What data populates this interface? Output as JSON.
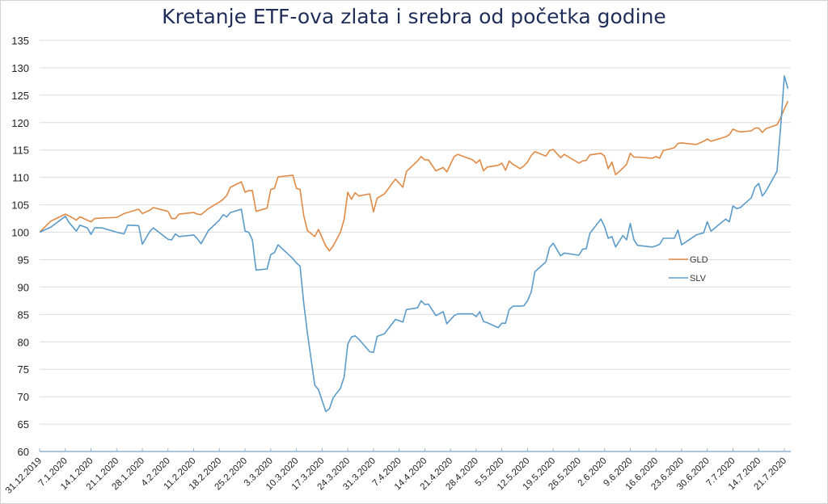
{
  "chart_data": {
    "type": "line",
    "title": "Kretanje ETF-ova zlata i srebra od početka godine",
    "xlabel": "",
    "ylabel": "",
    "ylim": [
      60,
      135
    ],
    "yticks": [
      60,
      65,
      70,
      75,
      80,
      85,
      90,
      95,
      100,
      105,
      110,
      115,
      120,
      125,
      130,
      135
    ],
    "xlim": [
      "2019-12-31",
      "2020-07-23"
    ],
    "xtick_labels": [
      "31.12.2019",
      "7.1.2020",
      "14.1.2020",
      "21.1.2020",
      "28.1.2020",
      "4.2.2020",
      "11.2.2020",
      "18.2.2020",
      "25.2.2020",
      "3.3.2020",
      "10.3.2020",
      "17.3.2020",
      "24.3.2020",
      "31.3.2020",
      "7.4.2020",
      "14.4.2020",
      "21.4.2020",
      "28.4.2020",
      "5.5.2020",
      "12.5.2020",
      "19.5.2020",
      "26.5.2020",
      "2.6.2020",
      "9.6.2020",
      "16.6.2020",
      "23.6.2020",
      "30.6.2020",
      "7.7.2020",
      "14.7.2020",
      "21.7.2020"
    ],
    "grid": true,
    "legend_position": "right",
    "x": [
      "2019-12-31",
      "2020-01-03",
      "2020-01-07",
      "2020-01-08",
      "2020-01-10",
      "2020-01-11",
      "2020-01-13",
      "2020-01-14",
      "2020-01-15",
      "2020-01-17",
      "2020-01-21",
      "2020-01-23",
      "2020-01-24",
      "2020-01-27",
      "2020-01-28",
      "2020-01-30",
      "2020-01-31",
      "2020-02-04",
      "2020-02-05",
      "2020-02-06",
      "2020-02-07",
      "2020-02-11",
      "2020-02-12",
      "2020-02-13",
      "2020-02-15",
      "2020-02-18",
      "2020-02-19",
      "2020-02-20",
      "2020-02-21",
      "2020-02-24",
      "2020-02-25",
      "2020-02-26",
      "2020-02-27",
      "2020-02-28",
      "2020-03-02",
      "2020-03-03",
      "2020-03-04",
      "2020-03-05",
      "2020-03-09",
      "2020-03-10",
      "2020-03-11",
      "2020-03-12",
      "2020-03-13",
      "2020-03-15",
      "2020-03-16",
      "2020-03-18",
      "2020-03-19",
      "2020-03-20",
      "2020-03-22",
      "2020-03-23",
      "2020-03-24",
      "2020-03-25",
      "2020-03-26",
      "2020-03-27",
      "2020-03-30",
      "2020-03-31",
      "2020-04-01",
      "2020-04-03",
      "2020-04-06",
      "2020-04-08",
      "2020-04-09",
      "2020-04-12",
      "2020-04-13",
      "2020-04-14",
      "2020-04-15",
      "2020-04-17",
      "2020-04-19",
      "2020-04-20",
      "2020-04-22",
      "2020-04-23",
      "2020-04-27",
      "2020-04-28",
      "2020-04-29",
      "2020-04-30",
      "2020-05-01",
      "2020-05-04",
      "2020-05-05",
      "2020-05-06",
      "2020-05-07",
      "2020-05-08",
      "2020-05-10",
      "2020-05-11",
      "2020-05-12",
      "2020-05-13",
      "2020-05-14",
      "2020-05-17",
      "2020-05-18",
      "2020-05-19",
      "2020-05-21",
      "2020-05-22",
      "2020-05-26",
      "2020-05-27",
      "2020-05-28",
      "2020-05-29",
      "2020-06-01",
      "2020-06-02",
      "2020-06-03",
      "2020-06-04",
      "2020-06-05",
      "2020-06-07",
      "2020-06-08",
      "2020-06-09",
      "2020-06-10",
      "2020-06-11",
      "2020-06-15",
      "2020-06-16",
      "2020-06-17",
      "2020-06-18",
      "2020-06-21",
      "2020-06-22",
      "2020-06-23",
      "2020-06-27",
      "2020-06-29",
      "2020-06-30",
      "2020-07-01",
      "2020-07-05",
      "2020-07-06",
      "2020-07-07",
      "2020-07-08",
      "2020-07-09",
      "2020-07-12",
      "2020-07-13",
      "2020-07-14",
      "2020-07-15",
      "2020-07-16",
      "2020-07-19",
      "2020-07-20",
      "2020-07-21",
      "2020-07-22"
    ],
    "series": [
      {
        "name": "GLD",
        "color": "#e08a45",
        "values": [
          100,
          102,
          103.3,
          103,
          102.2,
          102.8,
          102.2,
          101.9,
          102.5,
          102.6,
          102.7,
          103.4,
          103.6,
          104.2,
          103.4,
          104,
          104.5,
          103.8,
          102.5,
          102.5,
          103.3,
          103.6,
          103.3,
          103.2,
          104.3,
          105.5,
          106,
          106.7,
          108.2,
          109.2,
          107.3,
          107.6,
          107.6,
          103.8,
          104.4,
          107.8,
          108,
          110.1,
          110.4,
          108,
          107.8,
          103,
          100.3,
          99.2,
          100.5,
          97.5,
          96.6,
          97.5,
          100,
          102.3,
          107.3,
          106,
          107.2,
          106.6,
          107,
          103.7,
          106.2,
          107,
          109.7,
          108.2,
          111.1,
          113,
          113.8,
          113.2,
          113.2,
          111.2,
          111.8,
          111,
          113.8,
          114.2,
          113.2,
          112.6,
          113.2,
          111.2,
          111.9,
          112.2,
          112.6,
          111.3,
          113,
          112.4,
          111.6,
          112.1,
          112.8,
          114,
          114.7,
          113.9,
          114.9,
          115.1,
          113.6,
          114.2,
          112.6,
          113,
          113.1,
          114.1,
          114.4,
          113.9,
          111.6,
          112.8,
          110.5,
          111.7,
          112.4,
          114.4,
          113.7,
          113.7,
          113.5,
          113.8,
          113.5,
          114.9,
          115.4,
          116.2,
          116.3,
          116,
          116.6,
          117,
          116.6,
          117.4,
          117.8,
          118.8,
          118.5,
          118.3,
          118.5,
          119,
          119,
          118.2,
          118.9,
          119.6,
          120.9,
          122.5,
          123.9
        ]
      },
      {
        "name": "SLV",
        "color": "#5b9bc9",
        "values": [
          100,
          100.9,
          102.9,
          101.8,
          100.2,
          101.3,
          100.8,
          99.6,
          100.8,
          100.8,
          100,
          99.7,
          101.3,
          101.2,
          97.8,
          100.1,
          100.8,
          98.7,
          98.6,
          99.7,
          99.2,
          99.5,
          98.8,
          97.9,
          100.3,
          102.2,
          103.2,
          102.8,
          103.6,
          104.2,
          100.2,
          100,
          98.6,
          93.1,
          93.3,
          95.9,
          96.3,
          97.7,
          95.2,
          94.4,
          93.8,
          87,
          81.6,
          72.1,
          71.3,
          67.3,
          67.8,
          69.8,
          71.5,
          73.6,
          79.6,
          80.9,
          81.1,
          80.5,
          78.2,
          78.1,
          81,
          81.5,
          84.1,
          83.6,
          85.9,
          86.2,
          87.5,
          86.8,
          86.9,
          84.8,
          85.5,
          83.3,
          84.8,
          85.1,
          85.1,
          84.6,
          85.5,
          83.7,
          83.5,
          82.6,
          83.4,
          83.4,
          85.9,
          86.5,
          86.5,
          86.6,
          87.5,
          89.1,
          92.8,
          94.6,
          97.2,
          98,
          95.7,
          96.2,
          95.8,
          96.9,
          97,
          99.8,
          102.4,
          101,
          98.9,
          99.2,
          97.3,
          99.4,
          98.6,
          101.6,
          98.6,
          97.6,
          97.3,
          97.5,
          97.8,
          98.9,
          98.9,
          100.4,
          97.7,
          99.5,
          99.9,
          101.9,
          100.2,
          102.4,
          101.9,
          104.8,
          104.3,
          104.5,
          106.3,
          108.2,
          108.9,
          106.6,
          107.5,
          111.1,
          119.3,
          128.5,
          126.2
        ]
      }
    ]
  }
}
